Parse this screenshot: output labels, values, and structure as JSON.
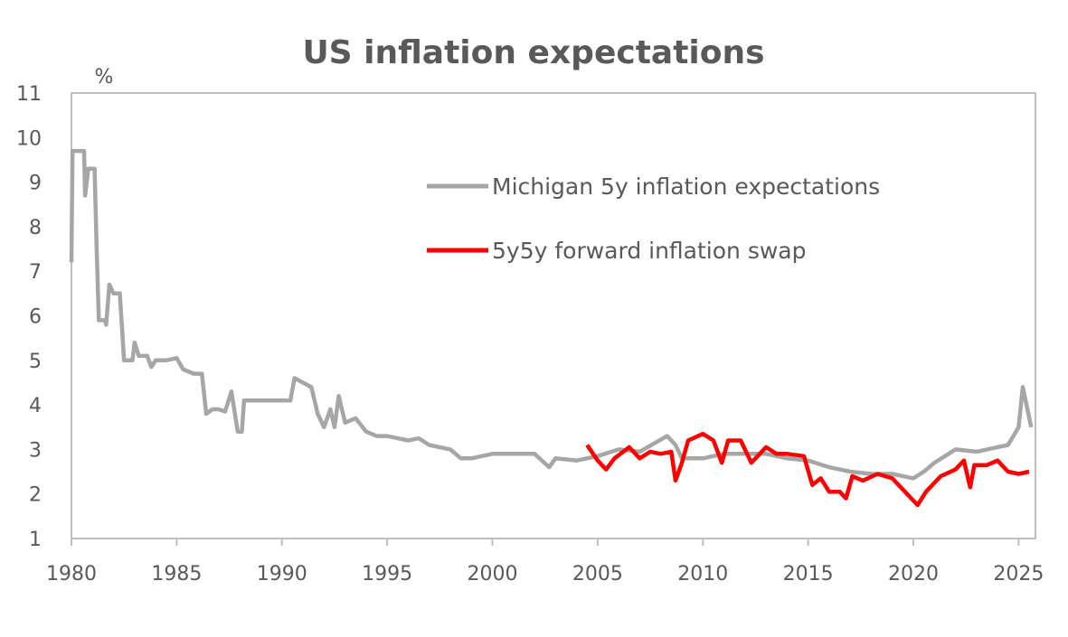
{
  "chart_data": {
    "type": "line",
    "title": "US inflation expectations",
    "ylabel": "%",
    "xlabel": "",
    "xlim": [
      1980,
      2025.8
    ],
    "ylim": [
      1,
      11
    ],
    "x_ticks": [
      "1980",
      "1985",
      "1990",
      "1995",
      "2000",
      "2005",
      "2010",
      "2015",
      "2020",
      "2025"
    ],
    "y_ticks": [
      "1",
      "2",
      "3",
      "4",
      "5",
      "6",
      "7",
      "8",
      "9",
      "10",
      "11"
    ],
    "grid": false,
    "legend_position": "top-right (inside plot)",
    "series": [
      {
        "name": "Michigan 5y inflation expectations",
        "color": "#a6a6a6",
        "points": [
          [
            1980.0,
            7.2
          ],
          [
            1980.05,
            9.7
          ],
          [
            1980.6,
            9.7
          ],
          [
            1980.65,
            8.7
          ],
          [
            1980.8,
            9.3
          ],
          [
            1981.1,
            9.3
          ],
          [
            1981.2,
            7.5
          ],
          [
            1981.3,
            5.9
          ],
          [
            1981.6,
            5.9
          ],
          [
            1981.65,
            5.8
          ],
          [
            1981.8,
            6.7
          ],
          [
            1982.0,
            6.5
          ],
          [
            1982.3,
            6.5
          ],
          [
            1982.5,
            5.0
          ],
          [
            1982.9,
            5.0
          ],
          [
            1983.0,
            5.4
          ],
          [
            1983.2,
            5.1
          ],
          [
            1983.6,
            5.1
          ],
          [
            1983.8,
            4.85
          ],
          [
            1984.0,
            5.0
          ],
          [
            1984.5,
            5.0
          ],
          [
            1985.0,
            5.05
          ],
          [
            1985.3,
            4.8
          ],
          [
            1985.8,
            4.7
          ],
          [
            1986.2,
            4.7
          ],
          [
            1986.4,
            3.8
          ],
          [
            1986.7,
            3.9
          ],
          [
            1987.0,
            3.9
          ],
          [
            1987.3,
            3.85
          ],
          [
            1987.6,
            4.3
          ],
          [
            1987.9,
            3.4
          ],
          [
            1988.1,
            3.4
          ],
          [
            1988.2,
            4.1
          ],
          [
            1990.4,
            4.1
          ],
          [
            1990.6,
            4.6
          ],
          [
            1991.0,
            4.5
          ],
          [
            1991.4,
            4.4
          ],
          [
            1991.7,
            3.8
          ],
          [
            1992.0,
            3.5
          ],
          [
            1992.3,
            3.9
          ],
          [
            1992.5,
            3.5
          ],
          [
            1992.7,
            4.2
          ],
          [
            1993.0,
            3.6
          ],
          [
            1993.5,
            3.7
          ],
          [
            1994.0,
            3.4
          ],
          [
            1994.5,
            3.3
          ],
          [
            1995.0,
            3.3
          ],
          [
            1996.0,
            3.2
          ],
          [
            1996.5,
            3.25
          ],
          [
            1997.0,
            3.1
          ],
          [
            1998.0,
            3.0
          ],
          [
            1998.5,
            2.8
          ],
          [
            1999.0,
            2.8
          ],
          [
            2000.0,
            2.9
          ],
          [
            2001.0,
            2.9
          ],
          [
            2002.0,
            2.9
          ],
          [
            2002.7,
            2.6
          ],
          [
            2003.0,
            2.8
          ],
          [
            2004.0,
            2.75
          ],
          [
            2005.0,
            2.85
          ],
          [
            2006.0,
            3.0
          ],
          [
            2007.0,
            2.95
          ],
          [
            2008.3,
            3.3
          ],
          [
            2008.7,
            3.1
          ],
          [
            2009.0,
            2.8
          ],
          [
            2010.0,
            2.8
          ],
          [
            2011.0,
            2.9
          ],
          [
            2012.0,
            2.9
          ],
          [
            2013.0,
            2.9
          ],
          [
            2014.0,
            2.8
          ],
          [
            2015.0,
            2.75
          ],
          [
            2016.0,
            2.6
          ],
          [
            2017.0,
            2.5
          ],
          [
            2018.0,
            2.45
          ],
          [
            2019.0,
            2.45
          ],
          [
            2020.0,
            2.35
          ],
          [
            2020.5,
            2.5
          ],
          [
            2021.0,
            2.7
          ],
          [
            2022.0,
            3.0
          ],
          [
            2023.0,
            2.95
          ],
          [
            2024.0,
            3.05
          ],
          [
            2024.5,
            3.1
          ],
          [
            2025.0,
            3.5
          ],
          [
            2025.2,
            4.4
          ],
          [
            2025.6,
            3.5
          ]
        ]
      },
      {
        "name": "5y5y forward inflation swap",
        "color": "#ff0000",
        "points": [
          [
            2004.5,
            3.1
          ],
          [
            2005.0,
            2.75
          ],
          [
            2005.4,
            2.55
          ],
          [
            2005.8,
            2.8
          ],
          [
            2006.5,
            3.05
          ],
          [
            2007.0,
            2.8
          ],
          [
            2007.5,
            2.95
          ],
          [
            2008.0,
            2.9
          ],
          [
            2008.5,
            2.95
          ],
          [
            2008.7,
            2.3
          ],
          [
            2009.0,
            2.7
          ],
          [
            2009.3,
            3.2
          ],
          [
            2010.0,
            3.35
          ],
          [
            2010.5,
            3.2
          ],
          [
            2010.9,
            2.7
          ],
          [
            2011.2,
            3.2
          ],
          [
            2011.8,
            3.2
          ],
          [
            2012.3,
            2.7
          ],
          [
            2013.0,
            3.05
          ],
          [
            2013.5,
            2.9
          ],
          [
            2014.0,
            2.9
          ],
          [
            2014.8,
            2.85
          ],
          [
            2015.2,
            2.2
          ],
          [
            2015.6,
            2.35
          ],
          [
            2016.0,
            2.05
          ],
          [
            2016.5,
            2.05
          ],
          [
            2016.8,
            1.9
          ],
          [
            2017.1,
            2.4
          ],
          [
            2017.6,
            2.3
          ],
          [
            2018.3,
            2.45
          ],
          [
            2019.0,
            2.35
          ],
          [
            2019.6,
            2.05
          ],
          [
            2020.2,
            1.75
          ],
          [
            2020.6,
            2.05
          ],
          [
            2021.3,
            2.4
          ],
          [
            2022.0,
            2.55
          ],
          [
            2022.4,
            2.75
          ],
          [
            2022.7,
            2.15
          ],
          [
            2022.9,
            2.65
          ],
          [
            2023.5,
            2.65
          ],
          [
            2024.0,
            2.75
          ],
          [
            2024.5,
            2.5
          ],
          [
            2025.0,
            2.45
          ],
          [
            2025.5,
            2.5
          ]
        ]
      }
    ]
  }
}
